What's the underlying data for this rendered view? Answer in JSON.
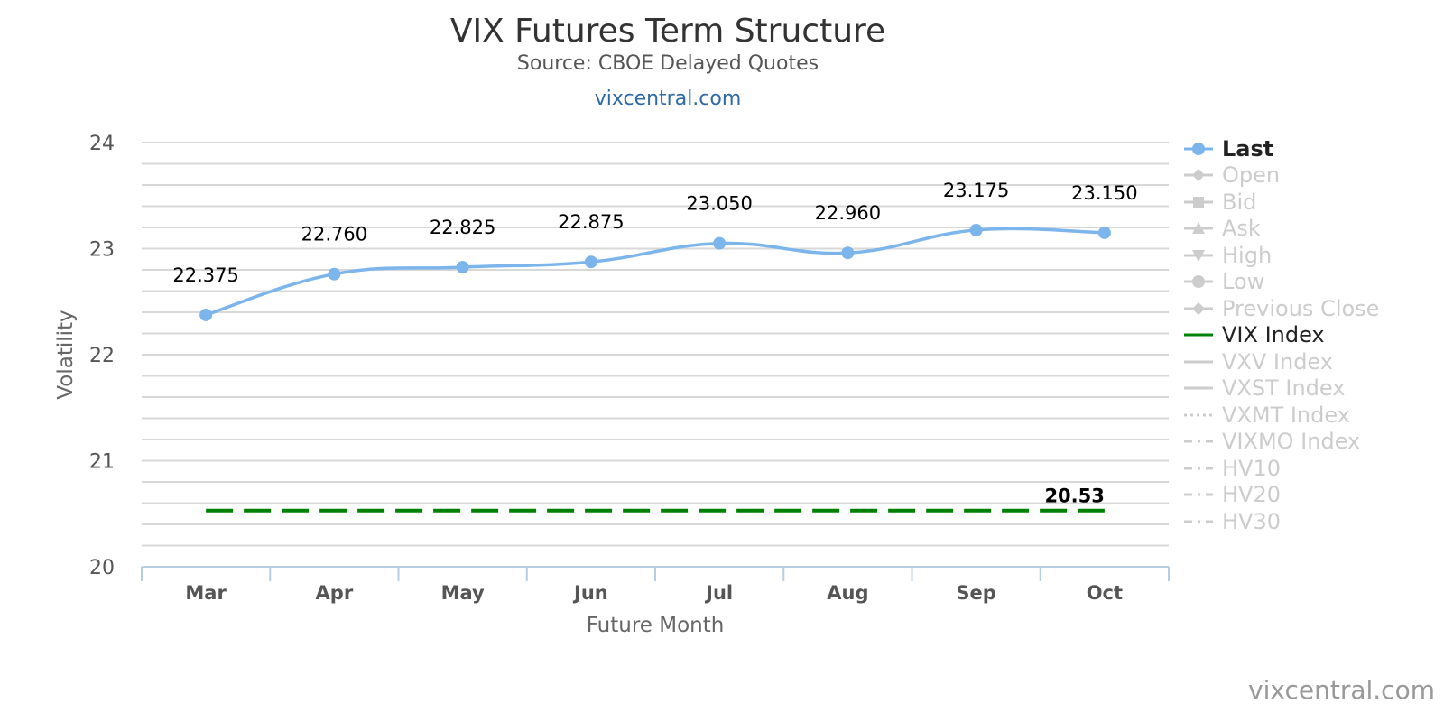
{
  "header": {
    "title": "VIX Futures Term Structure",
    "subtitle": "Source: CBOE Delayed Quotes",
    "link": "vixcentral.com"
  },
  "credits": "vixcentral.com",
  "legend": {
    "items": [
      {
        "label": "Last",
        "active": true,
        "symbol": "circle-line",
        "color": "#7cb5ec"
      },
      {
        "label": "Open",
        "active": false,
        "symbol": "diamond-line",
        "color": "#cccccc"
      },
      {
        "label": "Bid",
        "active": false,
        "symbol": "square-line",
        "color": "#cccccc"
      },
      {
        "label": "Ask",
        "active": false,
        "symbol": "triangle-line",
        "color": "#cccccc"
      },
      {
        "label": "High",
        "active": false,
        "symbol": "triangle-down-line",
        "color": "#cccccc"
      },
      {
        "label": "Low",
        "active": false,
        "symbol": "circle-line",
        "color": "#cccccc"
      },
      {
        "label": "Previous Close",
        "active": false,
        "symbol": "diamond-line",
        "color": "#cccccc"
      },
      {
        "label": "VIX Index",
        "active": true,
        "symbol": "solid",
        "color": "#008000"
      },
      {
        "label": "VXV Index",
        "active": false,
        "symbol": "solid",
        "color": "#cccccc"
      },
      {
        "label": "VXST Index",
        "active": false,
        "symbol": "solid",
        "color": "#cccccc"
      },
      {
        "label": "VXMT Index",
        "active": false,
        "symbol": "dotted",
        "color": "#cccccc"
      },
      {
        "label": "VIXMO Index",
        "active": false,
        "symbol": "dashdot",
        "color": "#cccccc"
      },
      {
        "label": "HV10",
        "active": false,
        "symbol": "dashdot",
        "color": "#cccccc"
      },
      {
        "label": "HV20",
        "active": false,
        "symbol": "dashdot",
        "color": "#cccccc"
      },
      {
        "label": "HV30",
        "active": false,
        "symbol": "dashdot",
        "color": "#cccccc"
      }
    ]
  },
  "chart_data": {
    "type": "line",
    "title": "VIX Futures Term Structure",
    "subtitle": "Source: CBOE Delayed Quotes",
    "xlabel": "Future Month",
    "ylabel": "Volatility",
    "categories": [
      "Mar",
      "Apr",
      "May",
      "Jun",
      "Jul",
      "Aug",
      "Sep",
      "Oct"
    ],
    "ylim": [
      20,
      24
    ],
    "y_ticks": [
      20,
      21,
      22,
      23,
      24
    ],
    "grid": true,
    "legend_position": "right",
    "series": [
      {
        "name": "Last",
        "values": [
          22.375,
          22.76,
          22.825,
          22.875,
          23.05,
          22.96,
          23.175,
          23.15
        ],
        "labels": [
          "22.375",
          "22.760",
          "22.825",
          "22.875",
          "23.050",
          "22.960",
          "23.175",
          "23.150"
        ],
        "color": "#7cb5ec",
        "style": "smooth-line-with-markers"
      },
      {
        "name": "VIX Index",
        "values": [
          20.53,
          20.53,
          20.53,
          20.53,
          20.53,
          20.53,
          20.53,
          20.53
        ],
        "end_label": "20.53",
        "color": "#008000",
        "style": "dashed"
      }
    ]
  }
}
